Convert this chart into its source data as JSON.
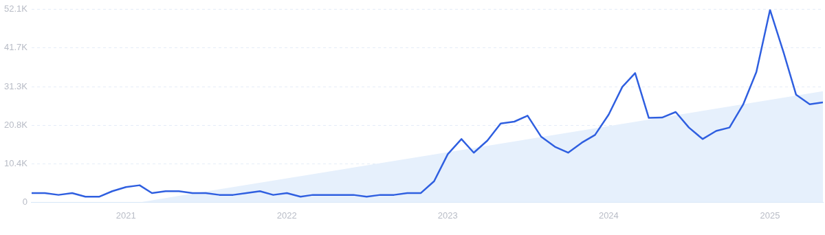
{
  "chart_data": {
    "type": "line",
    "x": [
      "2020-06",
      "2020-07",
      "2020-08",
      "2020-09",
      "2020-10",
      "2020-11",
      "2020-12",
      "2021-01",
      "2021-02",
      "2021-03",
      "2021-04",
      "2021-05",
      "2021-06",
      "2021-07",
      "2021-08",
      "2021-09",
      "2021-10",
      "2021-11",
      "2021-12",
      "2022-01",
      "2022-02",
      "2022-03",
      "2022-04",
      "2022-05",
      "2022-06",
      "2022-07",
      "2022-08",
      "2022-09",
      "2022-10",
      "2022-11",
      "2022-12",
      "2023-01",
      "2023-02",
      "2023-03",
      "2023-04",
      "2023-05",
      "2023-06",
      "2023-07",
      "2023-08",
      "2023-09",
      "2023-10",
      "2023-11",
      "2023-12",
      "2024-01",
      "2024-02",
      "2024-03",
      "2024-04",
      "2024-05",
      "2024-06",
      "2024-07",
      "2024-08",
      "2024-09",
      "2024-10",
      "2024-11",
      "2024-12",
      "2025-01",
      "2025-02",
      "2025-03",
      "2025-04",
      "2025-05"
    ],
    "series": [
      {
        "type": "area",
        "color": "#e6f0fc",
        "x": [
          "2021-02",
          "2025-05"
        ],
        "values": [
          0,
          30000
        ]
      },
      {
        "color": "#2f5fe0",
        "values": [
          2500,
          2500,
          2000,
          2500,
          1500,
          1500,
          3000,
          4100,
          4600,
          2500,
          3000,
          3000,
          2500,
          2500,
          2000,
          2000,
          2500,
          3000,
          2000,
          2500,
          1500,
          2000,
          2000,
          2000,
          2000,
          1500,
          2000,
          2000,
          2500,
          2500,
          5700,
          13000,
          17100,
          13400,
          16700,
          21300,
          21800,
          23400,
          17700,
          15000,
          13400,
          16100,
          18200,
          23700,
          31200,
          34900,
          22800,
          22900,
          24400,
          20200,
          17100,
          19300,
          20200,
          26400,
          35200,
          52000,
          40400,
          29100,
          26500,
          27000
        ]
      }
    ],
    "xlim": [
      "2020-06",
      "2025-05"
    ],
    "xticks": [
      "2021",
      "2022",
      "2023",
      "2024",
      "2025"
    ],
    "ylim": [
      0,
      52100
    ],
    "yticks": [
      {
        "value": 0,
        "label": "0"
      },
      {
        "value": 10420,
        "label": "10.4K"
      },
      {
        "value": 20840,
        "label": "20.8K"
      },
      {
        "value": 31260,
        "label": "31.3K"
      },
      {
        "value": 41680,
        "label": "41.7K"
      },
      {
        "value": 52100,
        "label": "52.1K"
      }
    ],
    "grid": "y",
    "legend": false,
    "marker": "none",
    "line_style": "solid"
  }
}
